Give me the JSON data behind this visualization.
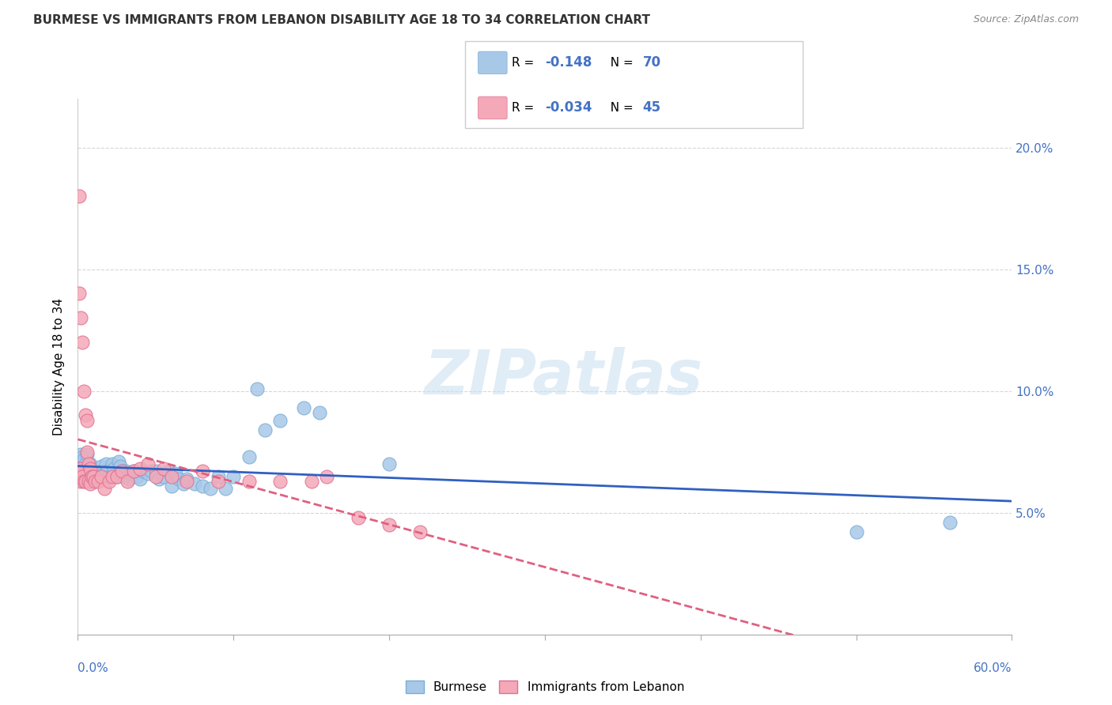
{
  "title": "BURMESE VS IMMIGRANTS FROM LEBANON DISABILITY AGE 18 TO 34 CORRELATION CHART",
  "source": "Source: ZipAtlas.com",
  "ylabel": "Disability Age 18 to 34",
  "right_yticks": [
    "5.0%",
    "10.0%",
    "15.0%",
    "20.0%"
  ],
  "right_ytick_vals": [
    0.05,
    0.1,
    0.15,
    0.2
  ],
  "xlim": [
    0.0,
    0.6
  ],
  "ylim": [
    0.0,
    0.22
  ],
  "watermark": "ZIPatlas",
  "burmese_color": "#a8c8e8",
  "burmese_edge": "#7aadd4",
  "lebanon_color": "#f4a8b8",
  "lebanon_edge": "#e07090",
  "trendline_burmese_color": "#3060c0",
  "trendline_lebanon_color": "#e06080",
  "burmese_x": [
    0.001,
    0.001,
    0.002,
    0.002,
    0.003,
    0.003,
    0.004,
    0.004,
    0.005,
    0.005,
    0.006,
    0.006,
    0.007,
    0.007,
    0.008,
    0.008,
    0.009,
    0.009,
    0.01,
    0.01,
    0.011,
    0.012,
    0.013,
    0.014,
    0.015,
    0.016,
    0.017,
    0.018,
    0.019,
    0.02,
    0.022,
    0.023,
    0.025,
    0.026,
    0.027,
    0.028,
    0.03,
    0.031,
    0.033,
    0.034,
    0.036,
    0.038,
    0.04,
    0.042,
    0.045,
    0.047,
    0.05,
    0.052,
    0.055,
    0.058,
    0.06,
    0.063,
    0.065,
    0.068,
    0.07,
    0.075,
    0.08,
    0.085,
    0.09,
    0.095,
    0.1,
    0.11,
    0.115,
    0.12,
    0.13,
    0.145,
    0.155,
    0.2,
    0.5,
    0.56
  ],
  "burmese_y": [
    0.072,
    0.068,
    0.074,
    0.065,
    0.069,
    0.073,
    0.068,
    0.072,
    0.066,
    0.07,
    0.068,
    0.074,
    0.065,
    0.069,
    0.063,
    0.07,
    0.068,
    0.066,
    0.065,
    0.067,
    0.065,
    0.066,
    0.067,
    0.065,
    0.069,
    0.067,
    0.066,
    0.07,
    0.067,
    0.065,
    0.07,
    0.068,
    0.065,
    0.071,
    0.069,
    0.067,
    0.065,
    0.067,
    0.064,
    0.066,
    0.067,
    0.065,
    0.064,
    0.067,
    0.066,
    0.067,
    0.067,
    0.064,
    0.065,
    0.067,
    0.061,
    0.066,
    0.064,
    0.062,
    0.064,
    0.062,
    0.061,
    0.06,
    0.065,
    0.06,
    0.065,
    0.073,
    0.101,
    0.084,
    0.088,
    0.093,
    0.091,
    0.07,
    0.042,
    0.046
  ],
  "lebanon_x": [
    0.001,
    0.001,
    0.001,
    0.002,
    0.002,
    0.002,
    0.003,
    0.003,
    0.004,
    0.004,
    0.005,
    0.005,
    0.006,
    0.006,
    0.007,
    0.007,
    0.008,
    0.008,
    0.009,
    0.01,
    0.011,
    0.013,
    0.015,
    0.017,
    0.02,
    0.022,
    0.025,
    0.028,
    0.032,
    0.036,
    0.04,
    0.045,
    0.05,
    0.055,
    0.06,
    0.07,
    0.08,
    0.09,
    0.11,
    0.13,
    0.15,
    0.16,
    0.18,
    0.2,
    0.22
  ],
  "lebanon_y": [
    0.18,
    0.14,
    0.068,
    0.13,
    0.068,
    0.063,
    0.12,
    0.065,
    0.1,
    0.063,
    0.09,
    0.063,
    0.088,
    0.075,
    0.07,
    0.063,
    0.068,
    0.062,
    0.065,
    0.065,
    0.063,
    0.063,
    0.065,
    0.06,
    0.063,
    0.065,
    0.065,
    0.067,
    0.063,
    0.067,
    0.068,
    0.07,
    0.065,
    0.068,
    0.065,
    0.063,
    0.067,
    0.063,
    0.063,
    0.063,
    0.063,
    0.065,
    0.048,
    0.045,
    0.042
  ]
}
